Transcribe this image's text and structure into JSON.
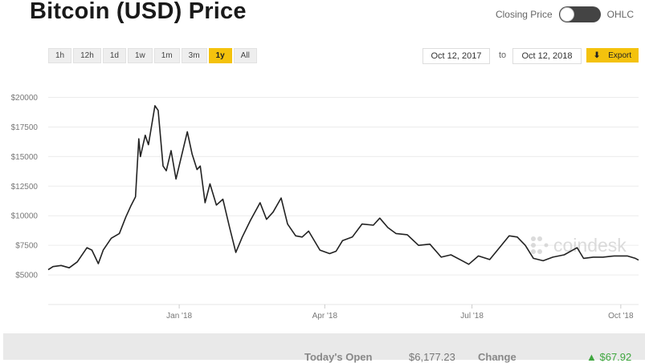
{
  "header": {
    "title": "Bitcoin (USD) Price"
  },
  "toggle": {
    "left_label": "Closing Price",
    "right_label": "OHLC"
  },
  "ranges": [
    "1h",
    "12h",
    "1d",
    "1w",
    "1m",
    "3m",
    "1y",
    "All"
  ],
  "active_range": "1y",
  "date_range": {
    "from": "Oct 12, 2017",
    "to_label": "to",
    "to": "Oct 12, 2018"
  },
  "export_label": "Export",
  "watermark": "coindesk",
  "stats": {
    "open_label": "Today's Open",
    "open_value": "$6,177.23",
    "change_label": "Change",
    "change_value": "▲ $67.92"
  },
  "colors": {
    "accent": "#f4c20d",
    "line": "#222222",
    "positive": "#3fa63f"
  },
  "chart_data": {
    "type": "line",
    "title": "",
    "xlabel": "",
    "ylabel": "",
    "x_ticks": [
      {
        "label": "Jan '18",
        "x": "2018-01-01"
      },
      {
        "label": "Apr '18",
        "x": "2018-04-01"
      },
      {
        "label": "Jul '18",
        "x": "2018-07-01"
      },
      {
        "label": "Oct '18",
        "x": "2018-10-01"
      }
    ],
    "y_ticks": [
      {
        "label": "$5000",
        "value": 5000
      },
      {
        "label": "$7500",
        "value": 7500
      },
      {
        "label": "$10000",
        "value": 10000
      },
      {
        "label": "$12500",
        "value": 12500
      },
      {
        "label": "$15000",
        "value": 15000
      },
      {
        "label": "$17500",
        "value": 17500
      },
      {
        "label": "$20000",
        "value": 20000
      }
    ],
    "xlim": [
      "2017-10-12",
      "2018-10-12"
    ],
    "ylim": [
      2500,
      22000
    ],
    "grid": true,
    "series": [
      {
        "values": [
          [
            "2017-10-12",
            5440
          ],
          [
            "2017-10-15",
            5700
          ],
          [
            "2017-10-20",
            5800
          ],
          [
            "2017-10-25",
            5600
          ],
          [
            "2017-10-30",
            6100
          ],
          [
            "2017-11-05",
            7300
          ],
          [
            "2017-11-08",
            7100
          ],
          [
            "2017-11-12",
            5950
          ],
          [
            "2017-11-15",
            7100
          ],
          [
            "2017-11-20",
            8100
          ],
          [
            "2017-11-25",
            8500
          ],
          [
            "2017-11-29",
            9900
          ],
          [
            "2017-12-02",
            10800
          ],
          [
            "2017-12-05",
            11600
          ],
          [
            "2017-12-07",
            16500
          ],
          [
            "2017-12-08",
            15000
          ],
          [
            "2017-12-11",
            16800
          ],
          [
            "2017-12-13",
            16000
          ],
          [
            "2017-12-17",
            19300
          ],
          [
            "2017-12-19",
            18900
          ],
          [
            "2017-12-22",
            14200
          ],
          [
            "2017-12-24",
            13800
          ],
          [
            "2017-12-27",
            15500
          ],
          [
            "2017-12-30",
            13100
          ],
          [
            "2018-01-02",
            14800
          ],
          [
            "2018-01-06",
            17100
          ],
          [
            "2018-01-09",
            15200
          ],
          [
            "2018-01-12",
            13900
          ],
          [
            "2018-01-14",
            14200
          ],
          [
            "2018-01-17",
            11100
          ],
          [
            "2018-01-20",
            12700
          ],
          [
            "2018-01-24",
            10900
          ],
          [
            "2018-01-28",
            11400
          ],
          [
            "2018-02-01",
            9100
          ],
          [
            "2018-02-05",
            6900
          ],
          [
            "2018-02-09",
            8200
          ],
          [
            "2018-02-14",
            9600
          ],
          [
            "2018-02-20",
            11100
          ],
          [
            "2018-02-24",
            9700
          ],
          [
            "2018-02-28",
            10300
          ],
          [
            "2018-03-05",
            11500
          ],
          [
            "2018-03-09",
            9300
          ],
          [
            "2018-03-14",
            8300
          ],
          [
            "2018-03-18",
            8200
          ],
          [
            "2018-03-22",
            8700
          ],
          [
            "2018-03-29",
            7100
          ],
          [
            "2018-04-04",
            6800
          ],
          [
            "2018-04-08",
            7000
          ],
          [
            "2018-04-12",
            7900
          ],
          [
            "2018-04-18",
            8200
          ],
          [
            "2018-04-24",
            9300
          ],
          [
            "2018-05-01",
            9200
          ],
          [
            "2018-05-05",
            9800
          ],
          [
            "2018-05-10",
            9000
          ],
          [
            "2018-05-15",
            8500
          ],
          [
            "2018-05-22",
            8400
          ],
          [
            "2018-05-29",
            7500
          ],
          [
            "2018-06-05",
            7600
          ],
          [
            "2018-06-12",
            6500
          ],
          [
            "2018-06-18",
            6700
          ],
          [
            "2018-06-25",
            6200
          ],
          [
            "2018-06-29",
            5900
          ],
          [
            "2018-07-05",
            6600
          ],
          [
            "2018-07-12",
            6300
          ],
          [
            "2018-07-18",
            7300
          ],
          [
            "2018-07-24",
            8300
          ],
          [
            "2018-07-29",
            8200
          ],
          [
            "2018-08-03",
            7500
          ],
          [
            "2018-08-08",
            6400
          ],
          [
            "2018-08-14",
            6200
          ],
          [
            "2018-08-20",
            6500
          ],
          [
            "2018-08-27",
            6700
          ],
          [
            "2018-09-04",
            7300
          ],
          [
            "2018-09-08",
            6400
          ],
          [
            "2018-09-14",
            6500
          ],
          [
            "2018-09-20",
            6500
          ],
          [
            "2018-09-27",
            6600
          ],
          [
            "2018-10-05",
            6600
          ],
          [
            "2018-10-10",
            6400
          ],
          [
            "2018-10-12",
            6250
          ]
        ]
      }
    ]
  }
}
